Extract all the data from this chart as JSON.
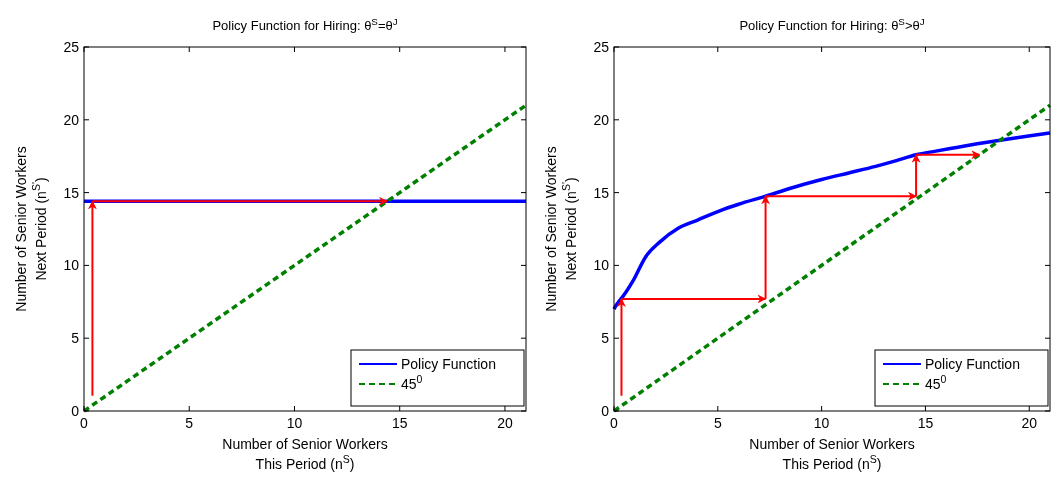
{
  "chart_data": [
    {
      "type": "line",
      "title": "Policy Function for Hiring: θ$^{S}$=θ$^{J}$",
      "xlabel": "Number of Senior Workers\nThis Period (n$^{S}$)",
      "ylabel": "Number of Senior Workers\nNext Period (n$^{S'}$)",
      "xlim": [
        0,
        21
      ],
      "ylim": [
        0,
        25
      ],
      "xticks": [
        0,
        5,
        10,
        15,
        20
      ],
      "yticks": [
        0,
        5,
        10,
        15,
        20,
        25
      ],
      "grid": false,
      "legend": "bottom right",
      "series": [
        {
          "name": "Policy Function",
          "color": "#0000ff",
          "line_style": "solid",
          "x": [
            0,
            21
          ],
          "values": [
            14.4,
            14.4
          ]
        },
        {
          "name": "45$^{0}$",
          "color": "#008000",
          "line_style": "dashed",
          "x": [
            0,
            21
          ],
          "values": [
            0,
            21
          ]
        },
        {
          "color": "#ff0000",
          "line_style": "solid",
          "x": [
            0.4,
            0.4
          ],
          "values": [
            1.05,
            14.4
          ]
        },
        {
          "color": "#ff0000",
          "line_style": "solid",
          "x": [
            0.4,
            14.4
          ],
          "values": [
            14.4,
            14.4
          ]
        }
      ]
    },
    {
      "type": "line",
      "title": "Policy Function for Hiring: θ$^{S}$>θ$^{J}$",
      "xlabel": "Number of Senior Workers\nThis Period (n$^{S}$)",
      "ylabel": "Number of Senior Workers\nNext Period (n$^{S'}$)",
      "xlim": [
        0,
        21
      ],
      "ylim": [
        0,
        25
      ],
      "xticks": [
        0,
        5,
        10,
        15,
        20
      ],
      "yticks": [
        0,
        5,
        10,
        15,
        20,
        25
      ],
      "grid": false,
      "legend": "bottom right",
      "series": [
        {
          "name": "Policy Function",
          "color": "#0000ff",
          "line_style": "solid",
          "x": [
            0,
            0.1,
            0.25,
            0.43,
            0.9,
            1.53,
            2.2,
            3.11,
            4,
            5,
            6,
            7.3,
            8.5,
            10,
            11.3,
            12.6,
            13.6,
            14.55,
            15.5,
            16.5,
            17.5,
            18.6,
            19.8,
            21
          ],
          "values": [
            7.0,
            7.25,
            7.55,
            7.87,
            8.9,
            10.6,
            11.6,
            12.57,
            13.1,
            13.7,
            14.2,
            14.75,
            15.3,
            15.9,
            16.35,
            16.8,
            17.2,
            17.6,
            17.85,
            18.1,
            18.35,
            18.6,
            18.85,
            19.1
          ]
        },
        {
          "name": "45$^{0}$",
          "color": "#008000",
          "line_style": "dashed",
          "x": [
            0,
            21
          ],
          "values": [
            0,
            21
          ]
        },
        {
          "color": "#ff0000",
          "line_style": "solid",
          "x": [
            0.36,
            0.36
          ],
          "values": [
            1.05,
            7.7
          ]
        },
        {
          "color": "#ff0000",
          "line_style": "solid",
          "x": [
            0.36,
            7.3
          ],
          "values": [
            7.7,
            7.7
          ]
        },
        {
          "color": "#ff0000",
          "line_style": "solid",
          "x": [
            7.3,
            7.3
          ],
          "values": [
            7.7,
            14.75
          ]
        },
        {
          "color": "#ff0000",
          "line_style": "solid",
          "x": [
            7.3,
            14.55
          ],
          "values": [
            14.75,
            14.75
          ]
        },
        {
          "color": "#ff0000",
          "line_style": "solid",
          "x": [
            14.55,
            14.55
          ],
          "values": [
            14.75,
            17.6
          ]
        },
        {
          "color": "#ff0000",
          "line_style": "solid",
          "x": [
            14.55,
            17.6
          ],
          "values": [
            17.6,
            17.6
          ]
        }
      ]
    }
  ]
}
